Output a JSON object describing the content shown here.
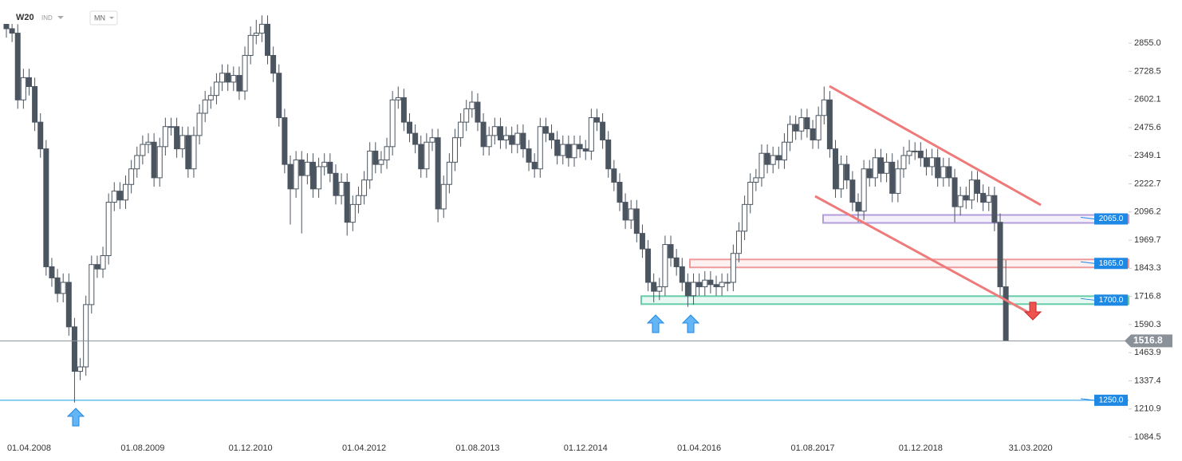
{
  "chart_data": {
    "type": "candlestick",
    "symbol": "W20",
    "market": "IND",
    "interval": "MN",
    "categories": [
      null,
      null,
      null,
      null,
      "01.04.2008",
      null,
      null,
      null,
      null,
      null,
      null,
      null,
      null,
      null,
      null,
      null,
      null,
      null,
      null,
      null,
      null,
      null,
      null,
      null,
      "01.08.2009",
      null,
      null,
      null,
      null,
      null,
      null,
      null,
      null,
      null,
      null,
      null,
      null,
      null,
      null,
      null,
      null,
      null,
      null,
      "01.12.2010",
      null,
      null,
      null,
      null,
      null,
      null,
      null,
      null,
      null,
      null,
      null,
      null,
      null,
      null,
      null,
      null,
      null,
      null,
      null,
      "01.04.2012",
      null,
      null,
      null,
      null,
      null,
      null,
      null,
      null,
      null,
      null,
      null,
      null,
      null,
      null,
      null,
      null,
      null,
      null,
      null,
      "01.08.2013",
      null,
      null,
      null,
      null,
      null,
      null,
      null,
      null,
      null,
      null,
      null,
      null,
      null,
      null,
      null,
      null,
      null,
      null,
      "01.12.2014",
      null,
      null,
      null,
      null,
      null,
      null,
      null,
      null,
      null,
      null,
      null,
      null,
      null,
      null,
      null,
      null,
      null,
      null,
      null,
      "01.04.2016",
      null,
      null,
      null,
      null,
      null,
      null,
      null,
      null,
      null,
      null,
      null,
      null,
      null,
      null,
      null,
      null,
      null,
      null,
      null,
      "01.08.2017",
      null,
      null,
      null,
      null,
      null,
      null,
      null,
      null,
      null,
      null,
      null,
      null,
      null,
      null,
      null,
      null,
      null,
      null,
      "01.12.2018",
      null,
      null,
      null,
      null,
      null,
      null,
      null,
      null,
      null,
      null,
      null,
      null,
      null,
      null,
      null
    ],
    "cursor_date": "31.03.2020",
    "series": [
      {
        "name": "W20",
        "up_color": "#ffffff",
        "down_color": "#4b5560",
        "line_color": "#4b5560",
        "open": [
          2960,
          2920,
          2900,
          2600,
          2700,
          2660,
          2500,
          2380,
          1850,
          1800,
          1730,
          1780,
          1580,
          1380,
          1400,
          1680,
          1860,
          1840,
          1900,
          2140,
          2190,
          2150,
          2220,
          2290,
          2350,
          2400,
          2410,
          2250,
          2390,
          2480,
          2480,
          2380,
          2440,
          2290,
          2440,
          2540,
          2600,
          2620,
          2680,
          2720,
          2680,
          2710,
          2640,
          2800,
          2890,
          2900,
          2940,
          2800,
          2720,
          2520,
          2310,
          2200,
          2330,
          2260,
          2320,
          2200,
          2300,
          2320,
          2270,
          2170,
          2230,
          2050,
          2130,
          2170,
          2240,
          2370,
          2310,
          2330,
          2390,
          2600,
          2610,
          2500,
          2450,
          2400,
          2290,
          2410,
          2430,
          2110,
          2220,
          2320,
          2430,
          2500,
          2560,
          2590,
          2500,
          2390,
          2440,
          2480,
          2420,
          2440,
          2400,
          2450,
          2380,
          2320,
          2290,
          2480,
          2450,
          2420,
          2350,
          2400,
          2340,
          2400,
          2380,
          2370,
          2520,
          2500,
          2420,
          2290,
          2230,
          2140,
          2060,
          2110,
          2000,
          1930,
          1780,
          1740,
          1760,
          1950,
          1890,
          1850,
          1780,
          1720,
          1780,
          1760,
          1790,
          1770,
          1760,
          1780,
          1780,
          1910,
          2010,
          2130,
          2230,
          2250,
          2360,
          2310,
          2350,
          2330,
          2410,
          2490,
          2460,
          2520,
          2470,
          2420,
          2530,
          2600,
          2380,
          2200,
          2310,
          2240,
          2140,
          2100,
          2290,
          2250,
          2340,
          2270,
          2320,
          2180,
          2290,
          2350,
          2370,
          2370,
          2340,
          2300,
          2340,
          2250,
          2300,
          2250,
          2120,
          2170,
          2150,
          2240,
          2180,
          2140,
          2170,
          2050,
          1760
        ],
        "high": [
          3000,
          2960,
          2940,
          2740,
          2740,
          2700,
          2540,
          2420,
          1890,
          1840,
          1820,
          1820,
          1620,
          1440,
          1720,
          1900,
          1900,
          1940,
          2180,
          2230,
          2230,
          2260,
          2330,
          2390,
          2440,
          2450,
          2450,
          2430,
          2520,
          2520,
          2520,
          2480,
          2480,
          2480,
          2580,
          2640,
          2660,
          2720,
          2760,
          2760,
          2750,
          2750,
          2840,
          2930,
          2960,
          2980,
          2980,
          2840,
          2760,
          2560,
          2350,
          2370,
          2370,
          2360,
          2360,
          2340,
          2360,
          2360,
          2310,
          2270,
          2270,
          2170,
          2210,
          2280,
          2410,
          2410,
          2370,
          2430,
          2640,
          2660,
          2650,
          2540,
          2490,
          2440,
          2450,
          2470,
          2470,
          2260,
          2360,
          2470,
          2540,
          2600,
          2640,
          2630,
          2540,
          2480,
          2520,
          2520,
          2480,
          2480,
          2490,
          2490,
          2420,
          2360,
          2520,
          2520,
          2490,
          2460,
          2440,
          2440,
          2440,
          2440,
          2420,
          2560,
          2560,
          2540,
          2460,
          2330,
          2270,
          2180,
          2150,
          2150,
          2040,
          1970,
          1820,
          1800,
          1990,
          1990,
          1930,
          1890,
          1820,
          1820,
          1820,
          1830,
          1830,
          1810,
          1820,
          1820,
          1950,
          2050,
          2170,
          2270,
          2290,
          2400,
          2400,
          2390,
          2390,
          2450,
          2530,
          2530,
          2560,
          2560,
          2510,
          2570,
          2660,
          2640,
          2420,
          2350,
          2350,
          2280,
          2180,
          2330,
          2330,
          2380,
          2380,
          2360,
          2360,
          2330,
          2390,
          2420,
          2410,
          2410,
          2380,
          2380,
          2380,
          2340,
          2340,
          2290,
          2210,
          2210,
          2280,
          2280,
          2220,
          2210,
          2210,
          2090,
          1880
        ],
        "low": [
          2880,
          2860,
          2560,
          2560,
          2620,
          2460,
          2340,
          1810,
          1760,
          1690,
          1690,
          1540,
          1240,
          1340,
          1360,
          1640,
          1800,
          1800,
          1860,
          2100,
          2110,
          2110,
          2180,
          2250,
          2310,
          2360,
          2210,
          2210,
          2350,
          2440,
          2340,
          2340,
          2250,
          2250,
          2400,
          2500,
          2560,
          2580,
          2640,
          2640,
          2640,
          2600,
          2600,
          2760,
          2850,
          2860,
          2760,
          2680,
          2480,
          2270,
          2040,
          2160,
          2000,
          2220,
          2160,
          2160,
          2260,
          2230,
          2130,
          2130,
          1990,
          2010,
          2090,
          2130,
          2200,
          2270,
          2270,
          2290,
          2350,
          2560,
          2460,
          2410,
          2360,
          2250,
          2250,
          2370,
          2050,
          2070,
          2180,
          2280,
          2390,
          2460,
          2520,
          2460,
          2350,
          2350,
          2400,
          2380,
          2380,
          2360,
          2360,
          2340,
          2280,
          2250,
          2250,
          2410,
          2380,
          2310,
          2310,
          2300,
          2300,
          2340,
          2330,
          2330,
          2460,
          2380,
          2250,
          2190,
          2100,
          2020,
          2020,
          1960,
          1890,
          1740,
          1690,
          1700,
          1720,
          1850,
          1810,
          1740,
          1670,
          1680,
          1720,
          1720,
          1730,
          1720,
          1720,
          1740,
          1740,
          1870,
          1970,
          2090,
          2190,
          2210,
          2270,
          2270,
          2290,
          2290,
          2370,
          2420,
          2420,
          2430,
          2380,
          2380,
          2490,
          2340,
          2160,
          2160,
          2200,
          2100,
          2050,
          2060,
          2210,
          2210,
          2230,
          2230,
          2140,
          2140,
          2250,
          2310,
          2330,
          2300,
          2260,
          2260,
          2210,
          2210,
          2210,
          2050,
          2080,
          2110,
          2110,
          2140,
          2100,
          2100,
          2010,
          1720,
          1516.8
        ],
        "close": [
          2920,
          2900,
          2600,
          2700,
          2660,
          2500,
          2380,
          1850,
          1800,
          1730,
          1780,
          1580,
          1380,
          1400,
          1680,
          1860,
          1840,
          1900,
          2140,
          2190,
          2150,
          2220,
          2290,
          2350,
          2400,
          2410,
          2250,
          2390,
          2480,
          2480,
          2380,
          2440,
          2290,
          2440,
          2540,
          2600,
          2620,
          2680,
          2720,
          2680,
          2710,
          2640,
          2800,
          2890,
          2900,
          2940,
          2800,
          2720,
          2520,
          2310,
          2200,
          2330,
          2260,
          2320,
          2200,
          2300,
          2320,
          2270,
          2170,
          2230,
          2050,
          2130,
          2170,
          2240,
          2370,
          2310,
          2330,
          2390,
          2600,
          2610,
          2500,
          2450,
          2400,
          2290,
          2410,
          2430,
          2110,
          2220,
          2320,
          2430,
          2500,
          2560,
          2590,
          2500,
          2390,
          2440,
          2480,
          2420,
          2440,
          2400,
          2450,
          2380,
          2320,
          2290,
          2480,
          2450,
          2420,
          2350,
          2400,
          2340,
          2400,
          2380,
          2370,
          2520,
          2500,
          2420,
          2290,
          2230,
          2140,
          2060,
          2110,
          2000,
          1930,
          1780,
          1740,
          1760,
          1950,
          1890,
          1850,
          1780,
          1720,
          1780,
          1760,
          1790,
          1770,
          1760,
          1780,
          1780,
          1910,
          2010,
          2130,
          2230,
          2250,
          2360,
          2310,
          2350,
          2330,
          2410,
          2490,
          2460,
          2520,
          2470,
          2420,
          2530,
          2600,
          2380,
          2200,
          2310,
          2240,
          2140,
          2100,
          2290,
          2250,
          2340,
          2270,
          2320,
          2180,
          2290,
          2350,
          2370,
          2370,
          2340,
          2300,
          2340,
          2250,
          2300,
          2250,
          2120,
          2170,
          2150,
          2240,
          2180,
          2140,
          2170,
          2050,
          1760,
          1516.8
        ]
      }
    ],
    "levels": [
      {
        "value": 2065,
        "label": "2065.0",
        "color": "#b39ddb",
        "style": "zone"
      },
      {
        "value": 1865,
        "label": "1865.0",
        "color": "#ef9a9a",
        "style": "zone"
      },
      {
        "value": 1700,
        "label": "1700.0",
        "color": "#66cdaa",
        "style": "zone"
      },
      {
        "value": 1250,
        "label": "1250.0",
        "color": "#1e9be8",
        "style": "line"
      }
    ],
    "ylim": [
      977,
      3049
    ],
    "yticks": [
      {
        "value": 2855,
        "label": "2855.0"
      },
      2728.5,
      2602.1,
      2475.6,
      2349.1,
      2222.7,
      2096.2,
      1969.7,
      1843.3,
      1716.8,
      1590.3,
      1463.9,
      1337.4,
      1210.9,
      1084.5
    ]
  }
}
